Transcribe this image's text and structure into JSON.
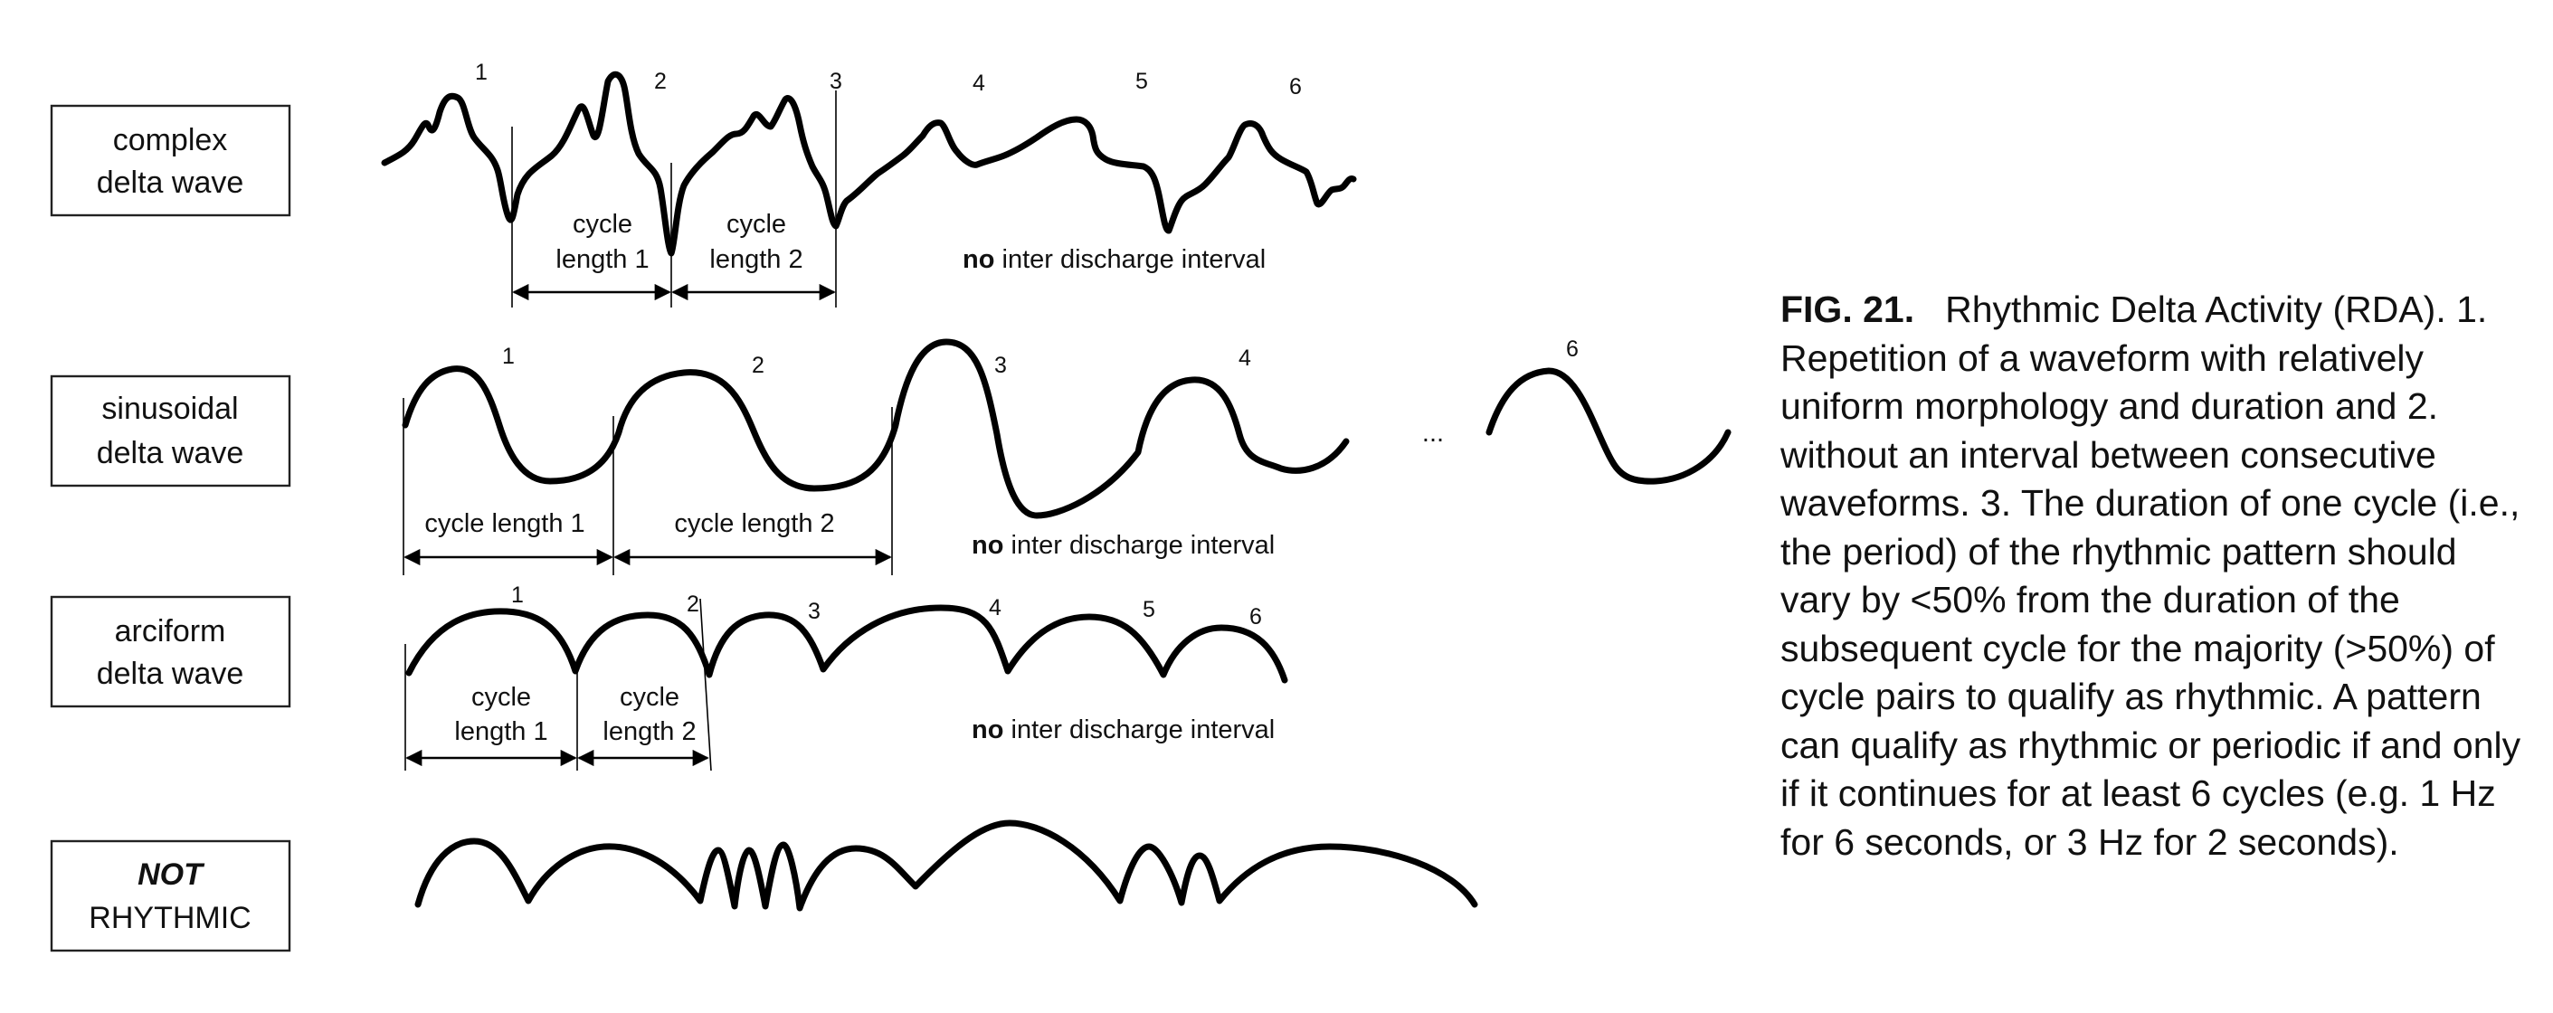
{
  "rows": {
    "complex": {
      "label_line1": "complex",
      "label_line2": "delta wave",
      "numbers": [
        "1",
        "2",
        "3",
        "4",
        "5",
        "6"
      ],
      "cycle1": [
        "cycle",
        "length 1"
      ],
      "cycle2": [
        "cycle",
        "length 2"
      ],
      "interval_bold": "no",
      "interval_rest": " inter discharge interval"
    },
    "sinusoidal": {
      "label_line1": "sinusoidal",
      "label_line2": "delta wave",
      "numbers": [
        "1",
        "2",
        "3",
        "4",
        "6"
      ],
      "ellipsis": "...",
      "cycle1": "cycle length 1",
      "cycle2": "cycle length 2",
      "interval_bold": "no",
      "interval_rest": " inter discharge interval"
    },
    "arciform": {
      "label_line1": "arciform",
      "label_line2": "delta wave",
      "numbers": [
        "1",
        "2",
        "3",
        "4",
        "5",
        "6"
      ],
      "cycle1": [
        "cycle",
        "length 1"
      ],
      "cycle2": [
        "cycle",
        "length 2"
      ],
      "interval_bold": "no",
      "interval_rest": " inter discharge interval"
    },
    "not_rhythmic": {
      "label_line1": "NOT",
      "label_line2": "RHYTHMIC"
    }
  },
  "caption": {
    "figure_label": "FIG. 21.",
    "text": "Rhythmic Delta Activity (RDA). 1. Repetition of a waveform with relatively uniform morphology and duration and 2. without an interval between consecutive waveforms. 3. The duration of one cycle (i.e., the period) of the rhythmic pattern should vary by <50% from the duration of the subsequent cycle for the majority (>50%) of cycle pairs to qualify as rhythmic. A pattern can qualify as rhythmic or periodic if and only if it continues for at least 6 cycles (e.g. 1 Hz for 6 seconds, or 3 Hz for 2 seconds)."
  }
}
